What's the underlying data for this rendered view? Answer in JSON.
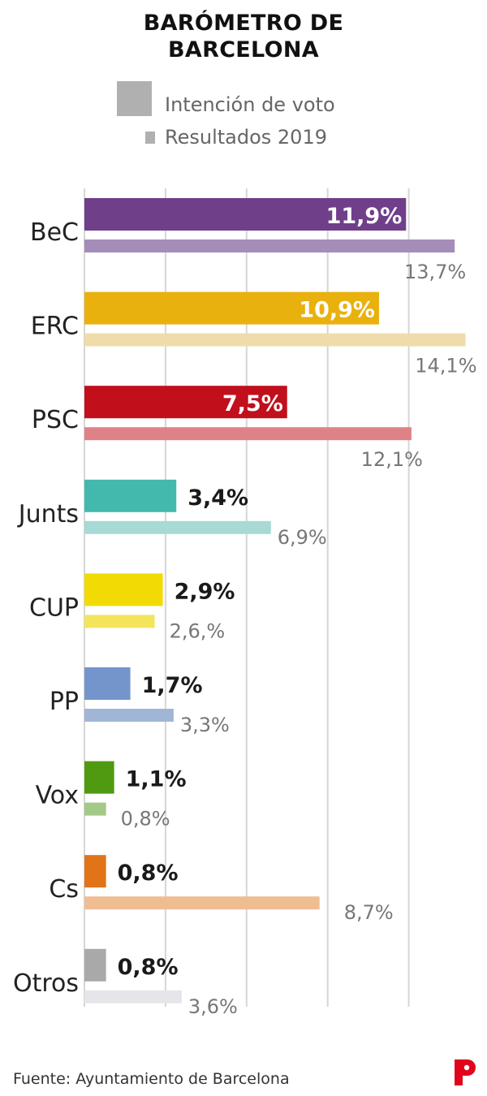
{
  "title_line1": "BARÓMETRO DE",
  "title_line2": "BARCELONA",
  "legend": {
    "intention_label": "Intención de voto",
    "results_label": "Resultados 2019",
    "color": "#b0b0b0"
  },
  "footer": "Fuente: Ayuntamiento de Barcelona",
  "logo_icon": "publisher-p-logo-icon",
  "chart_data": {
    "type": "bar",
    "orientation": "horizontal",
    "categories": [
      "BeC",
      "ERC",
      "PSC",
      "Junts",
      "CUP",
      "PP",
      "Vox",
      "Cs",
      "Otros"
    ],
    "series": [
      {
        "name": "Intención de voto",
        "values": [
          11.9,
          10.9,
          7.5,
          3.4,
          2.9,
          1.7,
          1.1,
          0.8,
          0.8
        ],
        "labels": [
          "11,9%",
          "10,9%",
          "7,5%",
          "3,4%",
          "2,9%",
          "1,7%",
          "1,1%",
          "0,8%",
          "0,8%"
        ]
      },
      {
        "name": "Resultados 2019",
        "values": [
          13.7,
          14.1,
          12.1,
          6.9,
          2.6,
          3.3,
          0.8,
          8.7,
          3.6
        ],
        "labels": [
          "13,7%",
          "14,1%",
          "12,1%",
          "6,9%",
          "2,6,%",
          "3,3%",
          "0,8%",
          "8,7%",
          "3,6%"
        ]
      }
    ],
    "colors": [
      "#6f3f8a",
      "#e9b10d",
      "#c10f1c",
      "#43b9ad",
      "#f2da04",
      "#7495cc",
      "#4f9a10",
      "#e17319",
      "#a9a9a9"
    ],
    "result_colors": [
      "#a48db8",
      "#f0dcaa",
      "#df8288",
      "#a7d9d5",
      "#f4e45b",
      "#a1b6d6",
      "#a2c986",
      "#f0bd93",
      "#e6e5ea"
    ],
    "xlim": [
      0,
      14
    ],
    "grid": true,
    "legend_position": "top"
  }
}
